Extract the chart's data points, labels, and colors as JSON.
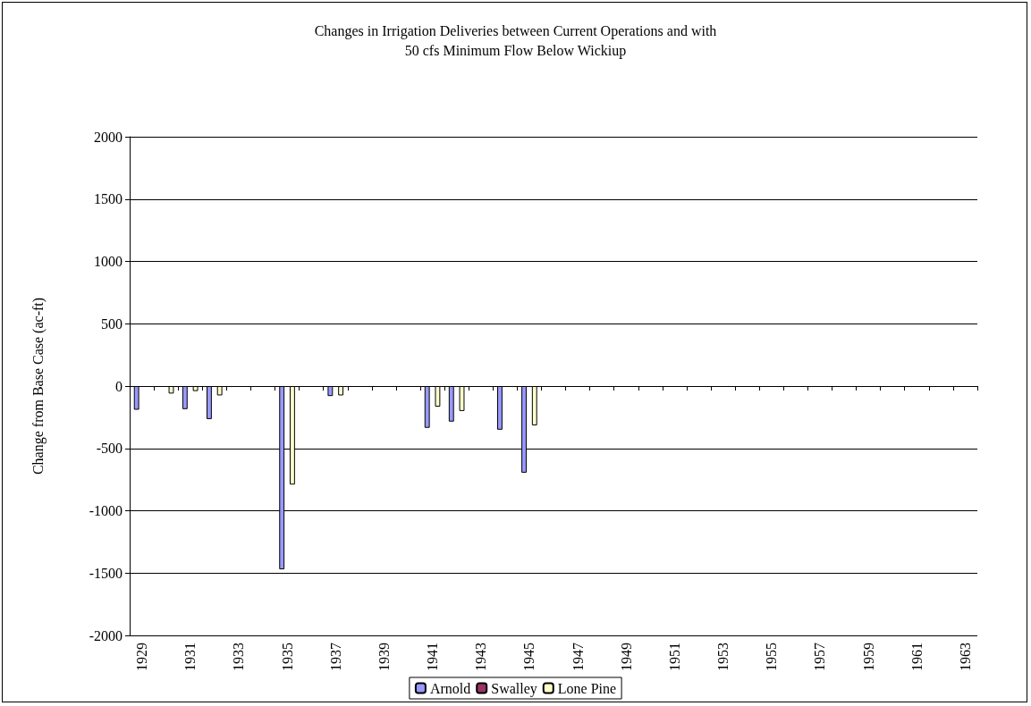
{
  "chart_data": {
    "type": "bar",
    "title": "Changes in Irrigation Deliveries between Current Operations and with\n50 cfs Minimum Flow Below Wickiup",
    "ylabel": "Change from Base Case (ac-ft)",
    "categories": [
      "1929",
      null,
      "1931",
      null,
      "1933",
      null,
      "1935",
      null,
      "1937",
      null,
      "1939",
      null,
      "1941",
      null,
      "1943",
      null,
      "1945",
      null,
      "1947",
      null,
      "1949",
      null,
      "1951",
      null,
      "1953",
      null,
      "1955",
      null,
      "1957",
      null,
      "1959",
      null,
      "1961",
      null,
      "1963"
    ],
    "series": [
      {
        "name": "Arnold",
        "color": "#9999ff",
        "values": [
          -190,
          null,
          -185,
          -265,
          null,
          null,
          -1470,
          null,
          -80,
          null,
          null,
          null,
          -335,
          -285,
          null,
          -350,
          -695,
          null,
          null,
          null,
          null,
          null,
          null,
          null,
          null,
          null,
          null,
          null,
          null,
          null,
          null,
          null,
          null,
          null,
          null
        ]
      },
      {
        "name": "Swalley",
        "color": "#993366",
        "values": [
          null,
          null,
          null,
          null,
          null,
          null,
          null,
          null,
          null,
          null,
          null,
          null,
          null,
          null,
          null,
          null,
          null,
          null,
          null,
          null,
          null,
          null,
          null,
          null,
          null,
          null,
          null,
          null,
          null,
          null,
          null,
          null,
          null,
          null,
          null
        ]
      },
      {
        "name": "Lone Pine",
        "color": "#ffffcc",
        "values": [
          null,
          -60,
          -40,
          -75,
          null,
          null,
          -790,
          null,
          -75,
          null,
          null,
          null,
          -165,
          -200,
          null,
          null,
          -315,
          null,
          null,
          null,
          null,
          null,
          null,
          null,
          null,
          null,
          null,
          null,
          null,
          null,
          null,
          null,
          null,
          null,
          null
        ]
      }
    ],
    "ylim": [
      -2000,
      2000
    ],
    "yticks": [
      -2000,
      -1500,
      -1000,
      -500,
      0,
      500,
      1000,
      1500,
      2000
    ],
    "grid": "y",
    "legend": "bottom"
  }
}
